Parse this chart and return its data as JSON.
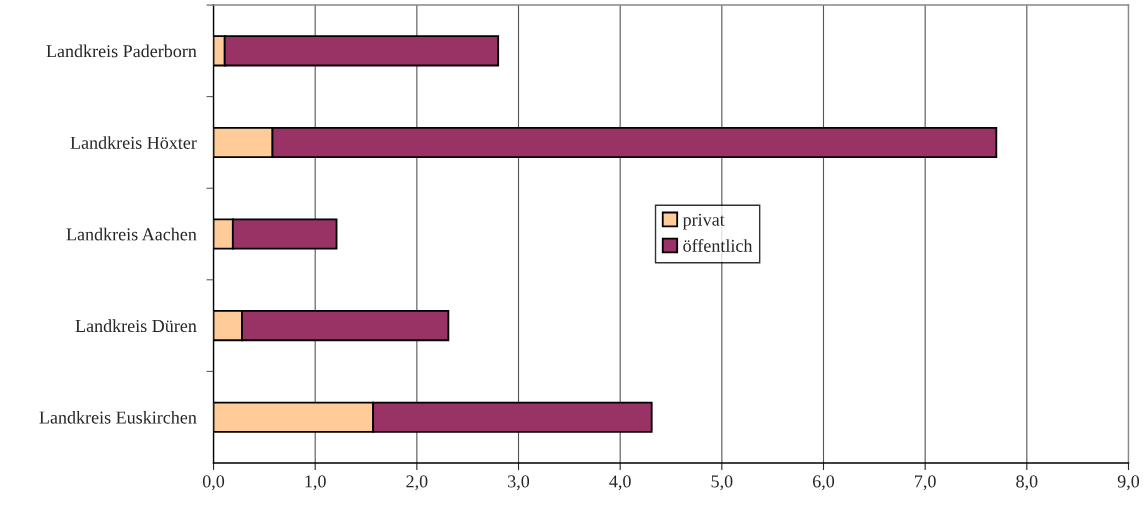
{
  "chart_data": {
    "type": "bar",
    "orientation": "horizontal",
    "stacked": true,
    "categories": [
      "Landkreis Paderborn",
      "Landkreis Höxter",
      "Landkreis Aachen",
      "Landkreis Düren",
      "Landkreis Euskirchen"
    ],
    "series": [
      {
        "name": "privat",
        "color": "#ffcc99",
        "values": [
          0.11,
          0.58,
          0.19,
          0.28,
          1.57
        ]
      },
      {
        "name": "öffentlich",
        "color": "#993366",
        "values": [
          2.69,
          7.12,
          1.02,
          2.03,
          2.74
        ]
      }
    ],
    "xlim": [
      0,
      9
    ],
    "xticks": [
      {
        "value": 0,
        "label": "0,0"
      },
      {
        "value": 1,
        "label": "1,0"
      },
      {
        "value": 2,
        "label": "2,0"
      },
      {
        "value": 3,
        "label": "3,0"
      },
      {
        "value": 4,
        "label": "4,0"
      },
      {
        "value": 5,
        "label": "5,0"
      },
      {
        "value": 6,
        "label": "6,0"
      },
      {
        "value": 7,
        "label": "7,0"
      },
      {
        "value": 8,
        "label": "8,0"
      },
      {
        "value": 9,
        "label": "9,0"
      }
    ],
    "grid": "x",
    "legend": "center"
  }
}
